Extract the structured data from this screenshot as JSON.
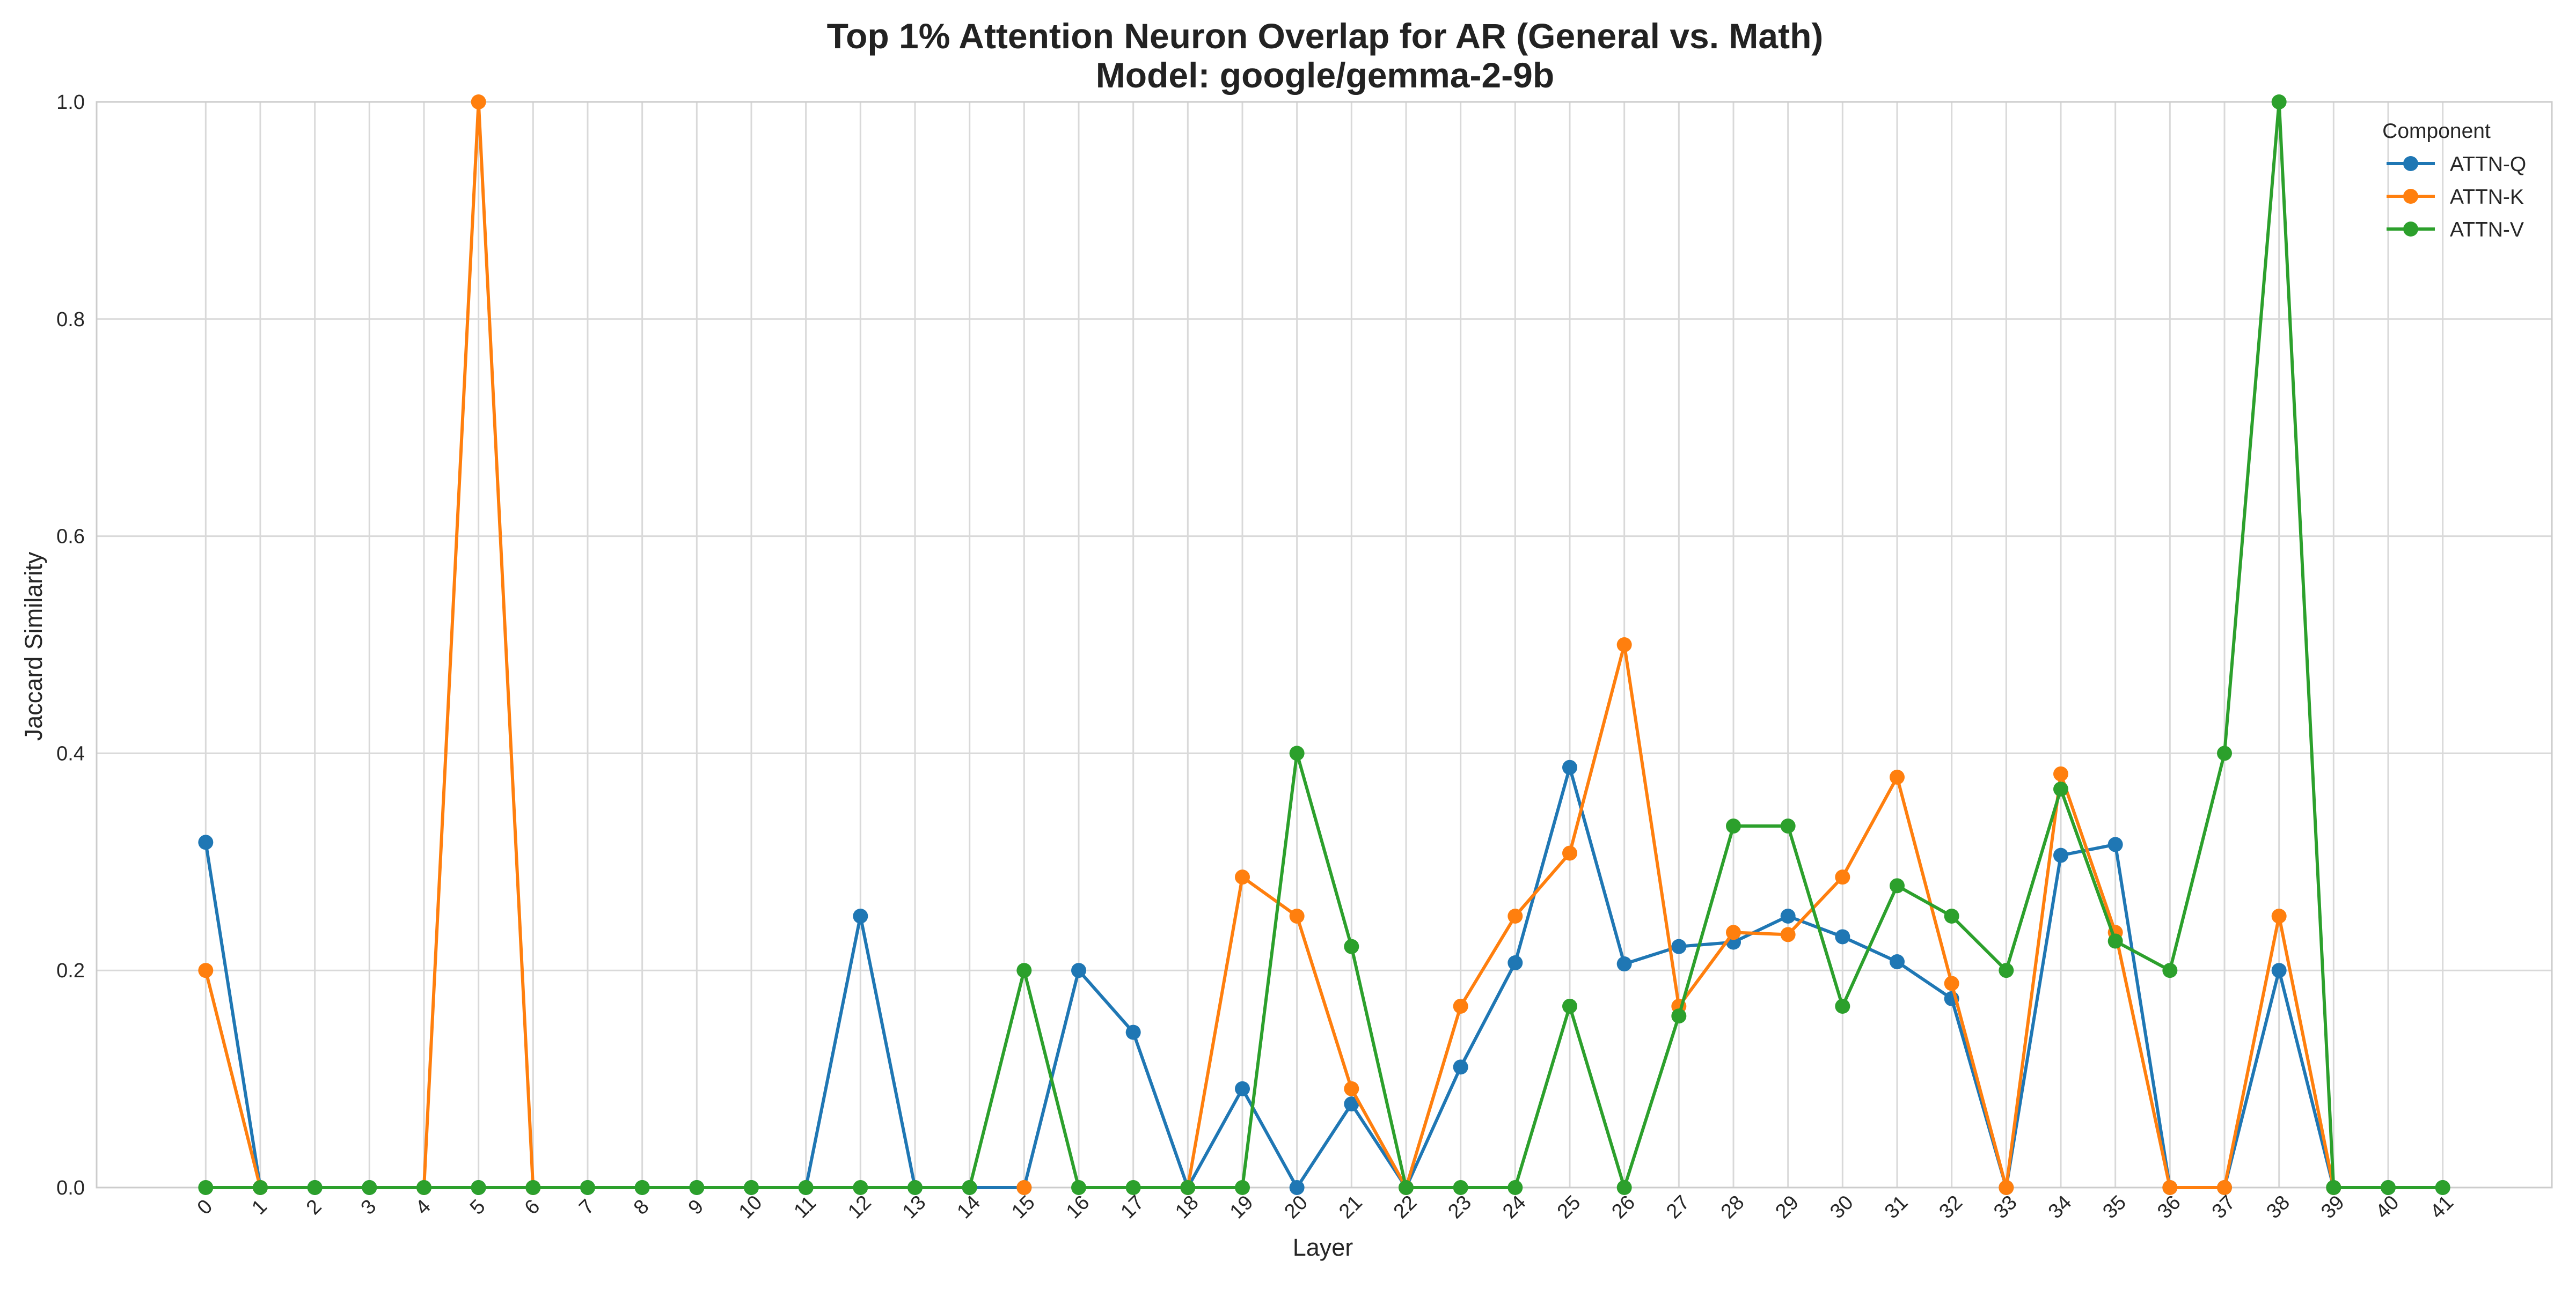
{
  "chart_data": {
    "type": "line",
    "title_line1": "Top 1% Attention Neuron Overlap for AR (General vs. Math)",
    "title_line2": "Model: google/gemma-2-9b",
    "xlabel": "Layer",
    "ylabel": "Jaccard Similarity",
    "x": [
      0,
      1,
      2,
      3,
      4,
      5,
      6,
      7,
      8,
      9,
      10,
      11,
      12,
      13,
      14,
      15,
      16,
      17,
      18,
      19,
      20,
      21,
      22,
      23,
      24,
      25,
      26,
      27,
      28,
      29,
      30,
      31,
      32,
      33,
      34,
      35,
      36,
      37,
      38,
      39,
      40,
      41
    ],
    "x_tick_labels": [
      "0",
      "1",
      "2",
      "3",
      "4",
      "5",
      "6",
      "7",
      "8",
      "9",
      "10",
      "11",
      "12",
      "13",
      "14",
      "15",
      "16",
      "17",
      "18",
      "19",
      "20",
      "21",
      "22",
      "23",
      "24",
      "25",
      "26",
      "27",
      "28",
      "29",
      "30",
      "31",
      "32",
      "33",
      "34",
      "35",
      "36",
      "37",
      "38",
      "39",
      "40",
      "41"
    ],
    "xlim": [
      -2,
      43
    ],
    "ylim": [
      0,
      1.0
    ],
    "y_ticks": [
      0.0,
      0.2,
      0.4,
      0.6,
      0.8,
      1.0
    ],
    "y_tick_labels": [
      "0.0",
      "0.2",
      "0.4",
      "0.6",
      "0.8",
      "1.0"
    ],
    "grid": true,
    "legend": {
      "title": "Component",
      "placement": "top-right"
    },
    "series": [
      {
        "name": "ATTN-Q",
        "color": "#1f77b4",
        "values": [
          0.318,
          0,
          0,
          0,
          0,
          0,
          0,
          0,
          0,
          0,
          0,
          0,
          0.25,
          0,
          0,
          0,
          0.2,
          0.143,
          0,
          0.091,
          0,
          0.077,
          0,
          0.111,
          0.207,
          0.387,
          0.206,
          0.222,
          0.226,
          0.25,
          0.231,
          0.208,
          0.174,
          0,
          0.306,
          0.316,
          0,
          0,
          0.2,
          0,
          0,
          0
        ]
      },
      {
        "name": "ATTN-K",
        "color": "#ff7f0e",
        "values": [
          0.2,
          0,
          null,
          null,
          0,
          1.0,
          0,
          null,
          null,
          null,
          null,
          null,
          null,
          null,
          null,
          0,
          null,
          null,
          0,
          0.286,
          0.25,
          0.091,
          0,
          0.167,
          0.25,
          0.308,
          0.5,
          0.167,
          0.235,
          0.233,
          0.286,
          0.378,
          0.188,
          0,
          0.381,
          0.235,
          0,
          0,
          0.25,
          0,
          null,
          null
        ]
      },
      {
        "name": "ATTN-V",
        "color": "#2ca02c",
        "values": [
          0,
          0,
          0,
          0,
          0,
          0,
          0,
          0,
          0,
          0,
          0,
          0,
          0,
          0,
          0,
          0.2,
          0,
          0,
          0,
          0,
          0.4,
          0.222,
          0,
          0,
          0,
          0.167,
          0,
          0.158,
          0.333,
          0.333,
          0.167,
          0.278,
          0.25,
          0.2,
          0.367,
          0.227,
          0.2,
          0.4,
          1.0,
          0,
          0,
          0
        ]
      }
    ]
  }
}
